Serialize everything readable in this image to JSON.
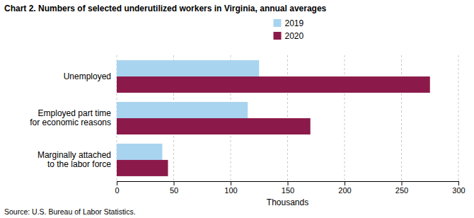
{
  "chart_data": {
    "type": "bar",
    "orientation": "horizontal",
    "title": "Chart 2.  Numbers of selected underutilized workers in Virginia, annual averages",
    "source": "Source: U.S. Bureau of Labor Statistics.",
    "categories": [
      "Unemployed",
      "Employed part time\nfor economic reasons",
      "Marginally attached\nto the labor force"
    ],
    "series": [
      {
        "name": "2019",
        "color": "#a8d4f0",
        "values": [
          125,
          115,
          40
        ]
      },
      {
        "name": "2020",
        "color": "#8b1a4a",
        "values": [
          275,
          170,
          45
        ]
      }
    ],
    "xlabel": "Thousands",
    "xlim": [
      0,
      300
    ],
    "xticks": [
      0,
      50,
      100,
      150,
      200,
      250,
      300
    ],
    "grid": true,
    "legend": "top"
  }
}
